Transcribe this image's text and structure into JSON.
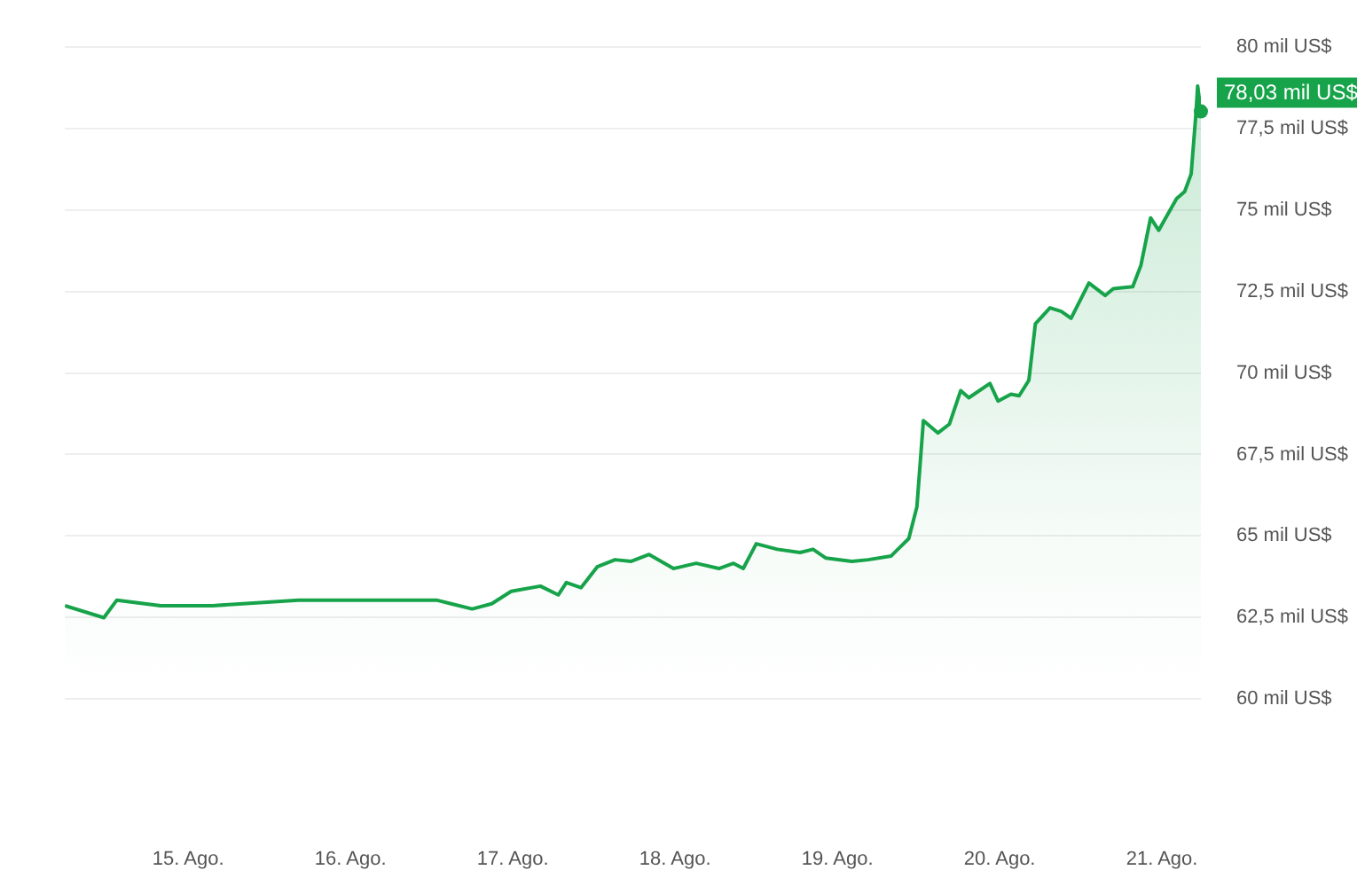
{
  "chart_data": {
    "type": "area",
    "color": "#16a34a",
    "x": [
      14.24,
      14.48,
      14.56,
      14.83,
      15.15,
      15.68,
      16.21,
      16.53,
      16.75,
      16.87,
      16.99,
      17.17,
      17.28,
      17.33,
      17.42,
      17.52,
      17.63,
      17.73,
      17.84,
      17.99,
      18.13,
      18.27,
      18.36,
      18.42,
      18.5,
      18.63,
      18.77,
      18.85,
      18.93,
      19.09,
      19.19,
      19.33,
      19.44,
      19.49,
      19.53,
      19.62,
      19.69,
      19.76,
      19.81,
      19.94,
      19.99,
      20.07,
      20.12,
      20.18,
      20.22,
      20.31,
      20.38,
      20.44,
      20.55,
      20.65,
      20.7,
      20.82,
      20.87,
      20.93,
      20.98,
      21.09,
      21.14,
      21.18,
      21.21,
      21.22,
      21.24
    ],
    "values": [
      62.86,
      62.49,
      63.03,
      62.86,
      62.86,
      63.03,
      63.03,
      63.03,
      62.76,
      62.92,
      63.3,
      63.46,
      63.19,
      63.57,
      63.41,
      64.05,
      64.27,
      64.22,
      64.43,
      64.0,
      64.16,
      64.0,
      64.16,
      64.0,
      64.76,
      64.59,
      64.49,
      64.59,
      64.32,
      64.22,
      64.27,
      64.38,
      64.92,
      65.89,
      68.54,
      68.16,
      68.43,
      69.46,
      69.24,
      69.68,
      69.14,
      69.35,
      69.3,
      69.78,
      71.51,
      72.0,
      71.89,
      71.68,
      72.76,
      72.38,
      72.59,
      72.65,
      73.3,
      74.76,
      74.38,
      75.35,
      75.57,
      76.11,
      78.0,
      78.81,
      78.03
    ],
    "xlim": [
      14.24,
      21.24
    ],
    "xticks": [
      {
        "value": 15,
        "label": "15. Ago."
      },
      {
        "value": 16,
        "label": "16. Ago."
      },
      {
        "value": 17,
        "label": "17. Ago."
      },
      {
        "value": 18,
        "label": "18. Ago."
      },
      {
        "value": 19,
        "label": "19. Ago."
      },
      {
        "value": 20,
        "label": "20. Ago."
      },
      {
        "value": 21,
        "label": "21. Ago."
      }
    ],
    "ylim": [
      60,
      80
    ],
    "yticks": [
      {
        "value": 60,
        "label": "60 mil US$"
      },
      {
        "value": 62.5,
        "label": "62,5 mil US$"
      },
      {
        "value": 65,
        "label": "65 mil US$"
      },
      {
        "value": 67.5,
        "label": "67,5 mil US$"
      },
      {
        "value": 70,
        "label": "70 mil US$"
      },
      {
        "value": 72.5,
        "label": "72,5 mil US$"
      },
      {
        "value": 75,
        "label": "75 mil US$"
      },
      {
        "value": 77.5,
        "label": "77,5 mil US$"
      },
      {
        "value": 80,
        "label": "80 mil US$"
      }
    ],
    "grid": "y",
    "legend": false,
    "marker": "none",
    "line_style": "solid",
    "annotations": [
      {
        "text": "78,03 mil US$",
        "x": 21.24,
        "y": 78.03
      }
    ]
  }
}
